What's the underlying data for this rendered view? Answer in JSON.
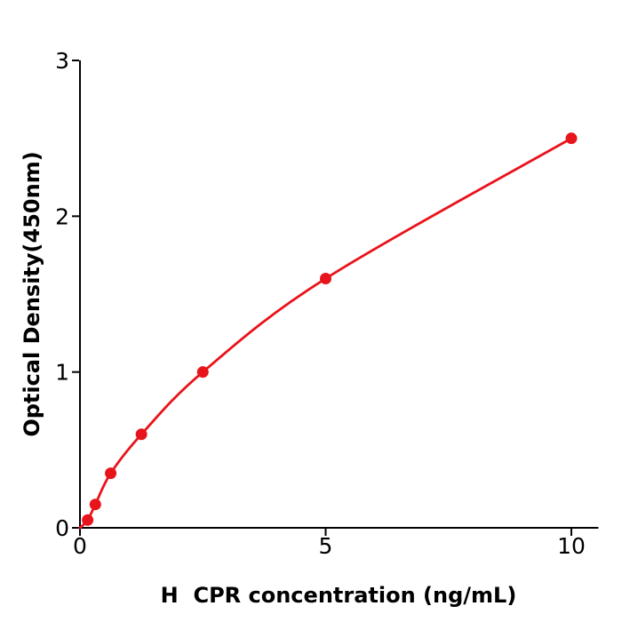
{
  "figure": {
    "background_color": "#ffffff"
  },
  "chart_data": {
    "type": "scatter",
    "subtype": "standard-curve-with-fitted-line",
    "title": "",
    "xlabel": "H  CPR concentration (ng/mL)",
    "ylabel": "Optical Density(450nm)",
    "x": [
      0.156,
      0.313,
      0.625,
      1.25,
      2.5,
      5,
      10
    ],
    "y": [
      0.05,
      0.15,
      0.35,
      0.6,
      1.0,
      1.6,
      2.5
    ],
    "curve_start_point": [
      0,
      0
    ],
    "xticks": [
      0,
      5,
      10
    ],
    "yticks": [
      0,
      1,
      2,
      3
    ],
    "xlim": [
      0,
      10.55
    ],
    "ylim": [
      0,
      3
    ],
    "grid": false,
    "legend_position": "none",
    "line_color": "#e8141b",
    "marker_color": "#e8141b",
    "axis_color": "#000000",
    "tick_direction": "out"
  }
}
